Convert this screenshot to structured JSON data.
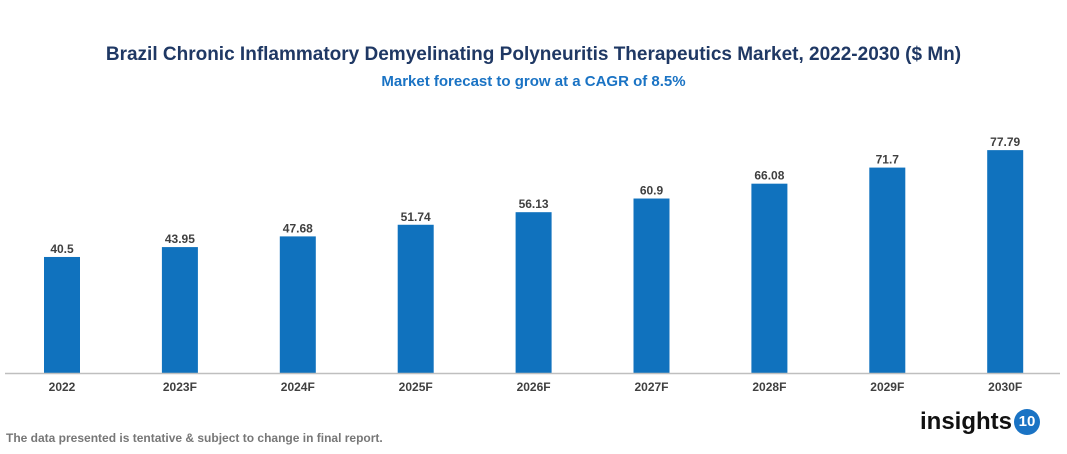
{
  "chart_data": {
    "type": "bar",
    "title": "Brazil Chronic Inflammatory Demyelinating Polyneuritis Therapeutics Market, 2022-2030 ($ Mn)",
    "subtitle": "Market forecast to grow at a CAGR of 8.5%",
    "categories": [
      "2022",
      "2023F",
      "2024F",
      "2025F",
      "2026F",
      "2027F",
      "2028F",
      "2029F",
      "2030F"
    ],
    "values": [
      40.5,
      43.95,
      47.68,
      51.74,
      56.13,
      60.9,
      66.08,
      71.7,
      77.79
    ],
    "labels": [
      "40.5",
      "43.95",
      "47.68",
      "51.74",
      "56.13",
      "60.9",
      "66.08",
      "71.7",
      "77.79"
    ],
    "xlabel": "",
    "ylabel": "",
    "ylim": [
      0,
      80
    ],
    "grid": false,
    "bar_color": "#1072be"
  },
  "footer": {
    "note": "The data presented is tentative & subject to change in final report."
  },
  "logo": {
    "text": "insights",
    "number": "10"
  }
}
